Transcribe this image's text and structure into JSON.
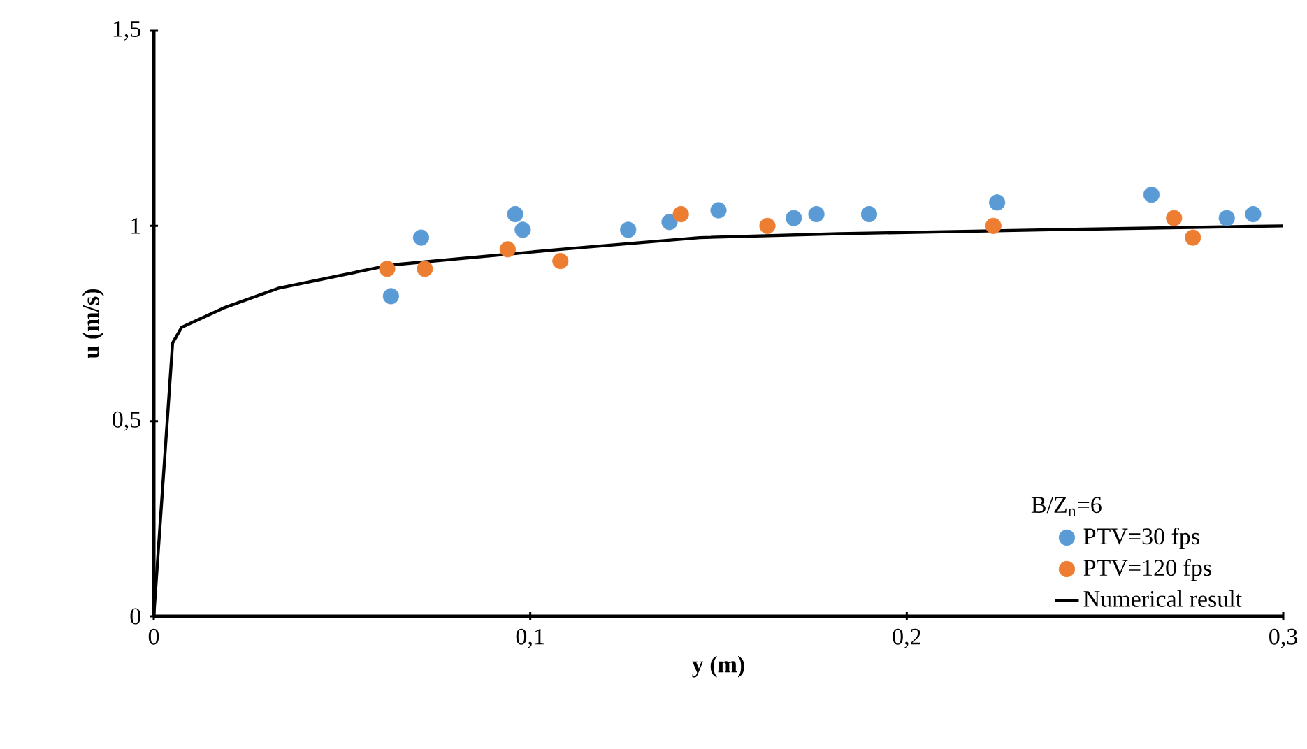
{
  "chart_data": {
    "type": "scatter",
    "xlabel": "y (m)",
    "ylabel": "u (m/s)",
    "legend_title": "B/Z$_{n}$=6",
    "xlim": [
      0,
      0.3
    ],
    "ylim": [
      0,
      1.5
    ],
    "xticks": [
      {
        "value": 0,
        "label": "0"
      },
      {
        "value": 0.1,
        "label": "0,1"
      },
      {
        "value": 0.2,
        "label": "0,2"
      },
      {
        "value": 0.3,
        "label": "0,3"
      }
    ],
    "yticks": [
      {
        "value": 0,
        "label": "0"
      },
      {
        "value": 0.5,
        "label": "0,5"
      },
      {
        "value": 1,
        "label": "1"
      },
      {
        "value": 1.5,
        "label": "1,5"
      }
    ],
    "grid": false,
    "legend": "bottom right",
    "series": [
      {
        "name": "PTV=30 fps",
        "marker": "circle",
        "color": "#5b9bd5",
        "x": [
          0.063,
          0.071,
          0.096,
          0.098,
          0.126,
          0.137,
          0.15,
          0.17,
          0.176,
          0.19,
          0.224,
          0.265,
          0.285,
          0.292
        ],
        "values": [
          0.82,
          0.97,
          1.03,
          0.99,
          0.99,
          1.01,
          1.04,
          1.02,
          1.03,
          1.03,
          1.06,
          1.08,
          1.02,
          1.03
        ]
      },
      {
        "name": "PTV=120 fps",
        "marker": "circle",
        "color": "#ed7d31",
        "x": [
          0.062,
          0.072,
          0.094,
          0.108,
          0.14,
          0.163,
          0.223,
          0.271,
          0.276
        ],
        "values": [
          0.89,
          0.89,
          0.94,
          0.91,
          1.03,
          1.0,
          1.0,
          1.02,
          0.97
        ]
      },
      {
        "name": "Numerical result",
        "type": "line",
        "marker": "none",
        "line_style": "solid",
        "color": "#000000",
        "x": [
          0,
          0.005,
          0.0074,
          0.0186,
          0.033,
          0.063,
          0.108,
          0.145,
          0.182,
          0.238,
          0.3
        ],
        "values": [
          0,
          0.7,
          0.74,
          0.79,
          0.84,
          0.9,
          0.94,
          0.97,
          0.98,
          0.99,
          1.0
        ]
      }
    ]
  }
}
